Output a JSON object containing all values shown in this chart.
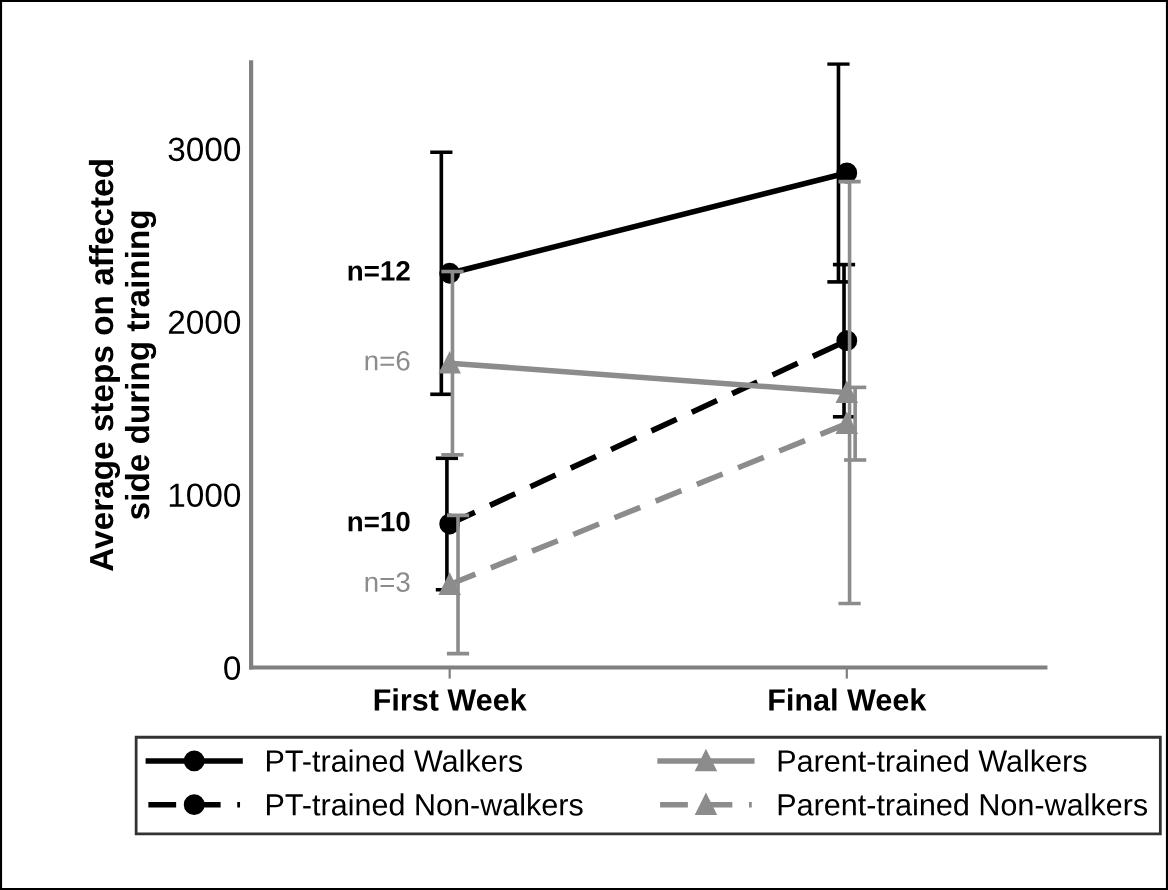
{
  "chart_data": {
    "type": "line",
    "ylabel": "Average steps on affected\nside during training",
    "categories": [
      "First Week",
      "Final Week"
    ],
    "series": [
      {
        "name": "PT-trained Walkers",
        "color": "#000000",
        "marker": "circle",
        "line_style": "solid",
        "values": [
          2280,
          2860
        ],
        "errors": [
          700,
          630
        ]
      },
      {
        "name": "PT-trained Non-walkers",
        "color": "#000000",
        "marker": "circle",
        "line_style": "dashed",
        "values": [
          830,
          1890
        ],
        "errors": [
          380,
          440
        ]
      },
      {
        "name": "Parent-trained Walkers",
        "color": "#8c8c8c",
        "marker": "triangle",
        "line_style": "solid",
        "values": [
          1760,
          1590
        ],
        "errors": [
          530,
          1220
        ]
      },
      {
        "name": "Parent-trained Non-walkers",
        "color": "#8c8c8c",
        "marker": "triangle",
        "line_style": "dashed",
        "values": [
          480,
          1410
        ],
        "errors": [
          400,
          210
        ]
      }
    ],
    "annotations": [
      {
        "text": "n=12",
        "x": "First Week",
        "y": 2280
      },
      {
        "text": "n=6",
        "x": "First Week",
        "y": 1760
      },
      {
        "text": "n=10",
        "x": "First Week",
        "y": 830
      },
      {
        "text": "n=3",
        "x": "First Week",
        "y": 480
      }
    ],
    "ylim": [
      0,
      3500
    ],
    "yticks": [
      0,
      1000,
      2000,
      3000
    ],
    "grid": false,
    "legend": "bottom"
  }
}
